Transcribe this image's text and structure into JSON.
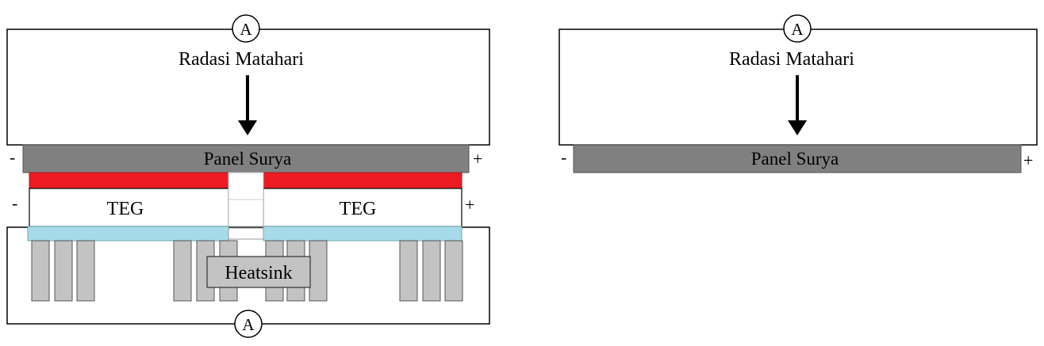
{
  "left_diagram": {
    "meter_top": "A",
    "meter_bottom": "A",
    "sun_label": "Radasi Matahari",
    "panel_label": "Panel Surya",
    "panel_minus": "-",
    "panel_plus": "+",
    "teg_left_label": "TEG",
    "teg_right_label": "TEG",
    "teg_minus": "-",
    "teg_plus": "+",
    "heatsink_label": "Heatsink"
  },
  "right_diagram": {
    "meter_top": "A",
    "sun_label": "Radasi Matahari",
    "panel_label": "Panel Surya",
    "panel_minus": "-",
    "panel_plus": "+"
  },
  "colors": {
    "panel": "#808080",
    "hot_plate": "#ed1c24",
    "cold_plate": "#a6dcea",
    "fin": "#c3c3c3"
  }
}
